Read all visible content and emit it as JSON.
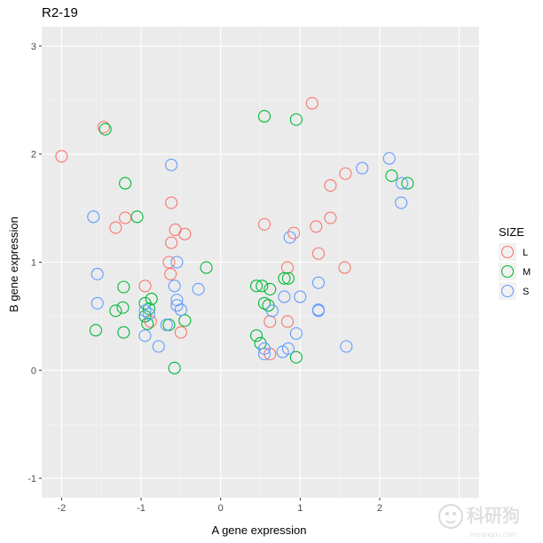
{
  "chart_data": {
    "type": "scatter",
    "title": "R2-19",
    "xlabel": "A gene expression",
    "ylabel": "B gene expression",
    "xlim": [
      -2.25,
      3.25
    ],
    "ylim": [
      -1.18,
      3.18
    ],
    "x_ticks": [
      -2,
      -1,
      0,
      1,
      2
    ],
    "y_ticks": [
      -1,
      0,
      1,
      2,
      3
    ],
    "grid": true,
    "legend_position": "right",
    "legend_title": "SIZE",
    "marker": "open-circle",
    "series": [
      {
        "name": "L",
        "color": "#F8766D",
        "points": [
          [
            -2.0,
            1.98
          ],
          [
            -1.47,
            2.25
          ],
          [
            -1.2,
            1.41
          ],
          [
            -1.32,
            1.32
          ],
          [
            -0.62,
            1.55
          ],
          [
            -0.57,
            1.3
          ],
          [
            -0.45,
            1.26
          ],
          [
            -0.62,
            1.18
          ],
          [
            -0.65,
            1.0
          ],
          [
            -0.63,
            0.89
          ],
          [
            -0.95,
            0.78
          ],
          [
            -0.88,
            0.45
          ],
          [
            -0.5,
            0.35
          ],
          [
            0.55,
            1.35
          ],
          [
            0.92,
            1.27
          ],
          [
            1.2,
            1.33
          ],
          [
            1.38,
            1.71
          ],
          [
            1.57,
            1.82
          ],
          [
            1.38,
            1.41
          ],
          [
            1.23,
            1.08
          ],
          [
            1.56,
            0.95
          ],
          [
            1.15,
            2.47
          ],
          [
            0.84,
            0.95
          ],
          [
            0.84,
            0.45
          ],
          [
            0.62,
            0.45
          ],
          [
            0.62,
            0.15
          ]
        ]
      },
      {
        "name": "M",
        "color": "#00BA38",
        "points": [
          [
            -1.45,
            2.23
          ],
          [
            -1.2,
            1.73
          ],
          [
            -1.05,
            1.42
          ],
          [
            -1.22,
            0.77
          ],
          [
            -1.32,
            0.55
          ],
          [
            -1.23,
            0.58
          ],
          [
            -1.57,
            0.37
          ],
          [
            -1.22,
            0.35
          ],
          [
            -0.95,
            0.62
          ],
          [
            -0.87,
            0.66
          ],
          [
            -0.9,
            0.57
          ],
          [
            -0.95,
            0.5
          ],
          [
            -0.92,
            0.43
          ],
          [
            -0.65,
            0.42
          ],
          [
            -0.45,
            0.46
          ],
          [
            -0.58,
            0.02
          ],
          [
            -0.18,
            0.95
          ],
          [
            0.55,
            2.35
          ],
          [
            0.95,
            2.32
          ],
          [
            2.15,
            1.8
          ],
          [
            2.35,
            1.73
          ],
          [
            0.45,
            0.78
          ],
          [
            0.52,
            0.78
          ],
          [
            0.62,
            0.75
          ],
          [
            0.8,
            0.85
          ],
          [
            0.85,
            0.85
          ],
          [
            0.55,
            0.62
          ],
          [
            0.6,
            0.6
          ],
          [
            0.45,
            0.32
          ],
          [
            0.5,
            0.25
          ],
          [
            0.95,
            0.12
          ]
        ]
      },
      {
        "name": "S",
        "color": "#619CFF",
        "points": [
          [
            -1.6,
            1.42
          ],
          [
            -0.62,
            1.9
          ],
          [
            -1.55,
            0.89
          ],
          [
            -1.55,
            0.62
          ],
          [
            -0.55,
            1.0
          ],
          [
            -0.58,
            0.78
          ],
          [
            -0.55,
            0.65
          ],
          [
            -0.55,
            0.6
          ],
          [
            -0.5,
            0.56
          ],
          [
            -0.95,
            0.55
          ],
          [
            -0.9,
            0.52
          ],
          [
            -0.95,
            0.32
          ],
          [
            -0.78,
            0.22
          ],
          [
            -0.68,
            0.42
          ],
          [
            -0.28,
            0.75
          ],
          [
            1.78,
            1.87
          ],
          [
            2.12,
            1.96
          ],
          [
            2.28,
            1.73
          ],
          [
            2.27,
            1.55
          ],
          [
            0.87,
            1.23
          ],
          [
            0.8,
            0.68
          ],
          [
            1.0,
            0.68
          ],
          [
            1.23,
            0.81
          ],
          [
            1.23,
            0.55
          ],
          [
            1.23,
            0.56
          ],
          [
            0.65,
            0.55
          ],
          [
            0.55,
            0.2
          ],
          [
            0.55,
            0.15
          ],
          [
            0.78,
            0.17
          ],
          [
            0.85,
            0.2
          ],
          [
            0.95,
            0.34
          ],
          [
            1.58,
            0.22
          ]
        ]
      }
    ]
  },
  "watermark": {
    "main": "科研狗",
    "sub": "keyangou.com"
  }
}
